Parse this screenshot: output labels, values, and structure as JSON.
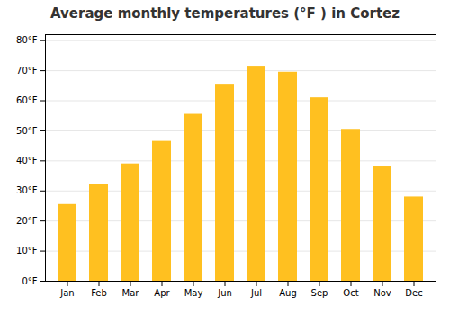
{
  "chart_data": {
    "type": "bar",
    "title": "Average monthly temperatures (°F ) in Cortez",
    "categories": [
      "Jan",
      "Feb",
      "Mar",
      "Apr",
      "May",
      "Jun",
      "Jul",
      "Aug",
      "Sep",
      "Oct",
      "Nov",
      "Dec"
    ],
    "values": [
      25.5,
      32.3,
      39.0,
      46.5,
      55.5,
      65.5,
      71.5,
      69.5,
      61.0,
      50.5,
      38.0,
      28.0
    ],
    "color": "#FFC020",
    "ylim": [
      0,
      82
    ],
    "yticks": [
      {
        "value": 0,
        "label": "0°F"
      },
      {
        "value": 10,
        "label": "10°F"
      },
      {
        "value": 20,
        "label": "20°F"
      },
      {
        "value": 30,
        "label": "30°F"
      },
      {
        "value": 40,
        "label": "40°F"
      },
      {
        "value": 50,
        "label": "50°F"
      },
      {
        "value": 60,
        "label": "60°F"
      },
      {
        "value": 70,
        "label": "70°F"
      },
      {
        "value": 80,
        "label": "80°F"
      }
    ],
    "grid": true
  }
}
